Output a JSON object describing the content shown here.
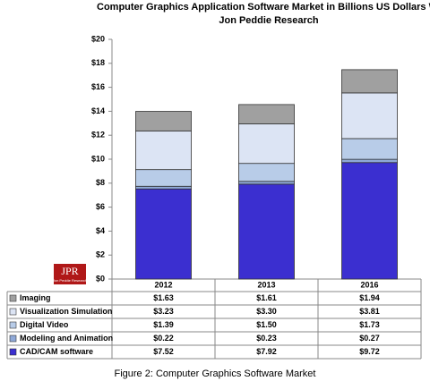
{
  "chart_data": {
    "type": "stacked_bar",
    "title": "Computer Graphics Application Software Market in Billions US Dollars WW",
    "subtitle": "Jon Peddie Research",
    "caption": "Figure 2: Computer Graphics Software Market",
    "logo_text": "JPR",
    "logo_subtext": "Jon Peddie Research",
    "categories": [
      "2012",
      "2013",
      "2016"
    ],
    "series": [
      {
        "name": "CAD/CAM software",
        "color": "#3b2fd0",
        "values": [
          7.52,
          7.92,
          9.72
        ],
        "value_labels": [
          "$7.52",
          "$7.92",
          "$9.72"
        ]
      },
      {
        "name": "Modeling and Animation",
        "color": "#8fa9d8",
        "values": [
          0.22,
          0.23,
          0.27
        ],
        "value_labels": [
          "$0.22",
          "$0.23",
          "$0.27"
        ]
      },
      {
        "name": "Digital Video",
        "color": "#b8cce8",
        "values": [
          1.39,
          1.5,
          1.73
        ],
        "value_labels": [
          "$1.39",
          "$1.50",
          "$1.73"
        ]
      },
      {
        "name": "Visualization Simulation",
        "color": "#dce4f4",
        "values": [
          3.23,
          3.3,
          3.81
        ],
        "value_labels": [
          "$3.23",
          "$3.30",
          "$3.81"
        ]
      },
      {
        "name": "Imaging",
        "color": "#a0a0a0",
        "values": [
          1.63,
          1.61,
          1.94
        ],
        "value_labels": [
          "$1.63",
          "$1.61",
          "$1.94"
        ]
      }
    ],
    "ylim": [
      0,
      20
    ],
    "yticks": [
      {
        "value": 0,
        "label": "$0"
      },
      {
        "value": 2,
        "label": "$2"
      },
      {
        "value": 4,
        "label": "$4"
      },
      {
        "value": 6,
        "label": "$6"
      },
      {
        "value": 8,
        "label": "$8"
      },
      {
        "value": 10,
        "label": "$10"
      },
      {
        "value": 12,
        "label": "$12"
      },
      {
        "value": 14,
        "label": "$14"
      },
      {
        "value": 16,
        "label": "$16"
      },
      {
        "value": 18,
        "label": "$18"
      },
      {
        "value": 20,
        "label": "$20"
      }
    ],
    "grid": false
  }
}
